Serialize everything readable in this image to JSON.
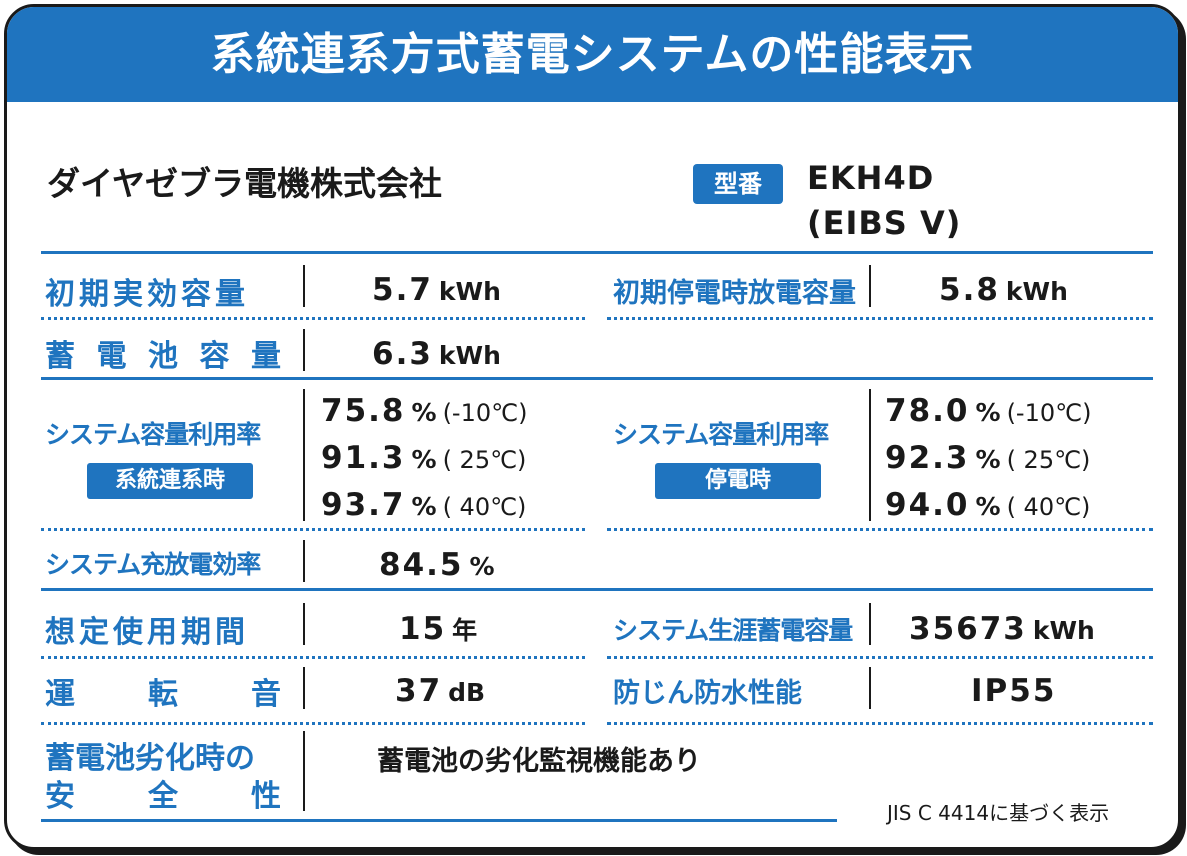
{
  "title": "系統連系方式蓄電システムの性能表示",
  "manufacturer": "ダイヤゼブラ電機株式会社",
  "model": {
    "badge": "型番",
    "line1": "EKH4D",
    "line2": "(EIBS V)"
  },
  "rows": {
    "initial_effective_capacity": {
      "label": "初期実効容量",
      "value": "5.7",
      "unit": "kWh"
    },
    "initial_outage_discharge_capacity": {
      "label": "初期停電時放電容量",
      "value": "5.8",
      "unit": "kWh"
    },
    "battery_capacity": {
      "label_chars": [
        "蓄",
        "電",
        "池",
        "容",
        "量"
      ],
      "value": "6.3",
      "unit": "kWh"
    },
    "utilization_grid": {
      "label": "システム容量利用率",
      "mode": "系統連系時",
      "items": [
        {
          "value": "75.8",
          "unit": "%",
          "cond": "(-10℃)"
        },
        {
          "value": "91.3",
          "unit": "%",
          "cond": "( 25℃)"
        },
        {
          "value": "93.7",
          "unit": "%",
          "cond": "( 40℃)"
        }
      ]
    },
    "utilization_outage": {
      "label": "システム容量利用率",
      "mode": "停電時",
      "items": [
        {
          "value": "78.0",
          "unit": "%",
          "cond": "(-10℃)"
        },
        {
          "value": "92.3",
          "unit": "%",
          "cond": "( 25℃)"
        },
        {
          "value": "94.0",
          "unit": "%",
          "cond": "( 40℃)"
        }
      ]
    },
    "charge_discharge_efficiency": {
      "label": "システム充放電効率",
      "value": "84.5",
      "unit": "%"
    },
    "expected_service_life": {
      "label": "想定使用期間",
      "value": "15",
      "unit": "年"
    },
    "lifetime_storage_capacity": {
      "label": "システム生涯蓄電容量",
      "value": "35673",
      "unit": "kWh"
    },
    "operating_noise": {
      "label_chars": [
        "運",
        "転",
        "音"
      ],
      "value": "37",
      "unit": "dB"
    },
    "ingress_protection": {
      "label": "防じん防水性能",
      "value": "IP55"
    },
    "degradation_safety": {
      "label_line1": "蓄電池劣化時の",
      "label_line2_chars": [
        "安",
        "全",
        "性"
      ],
      "value": "蓄電池の劣化監視機能あり"
    }
  },
  "footnote": "JIS C 4414に基づく表示"
}
